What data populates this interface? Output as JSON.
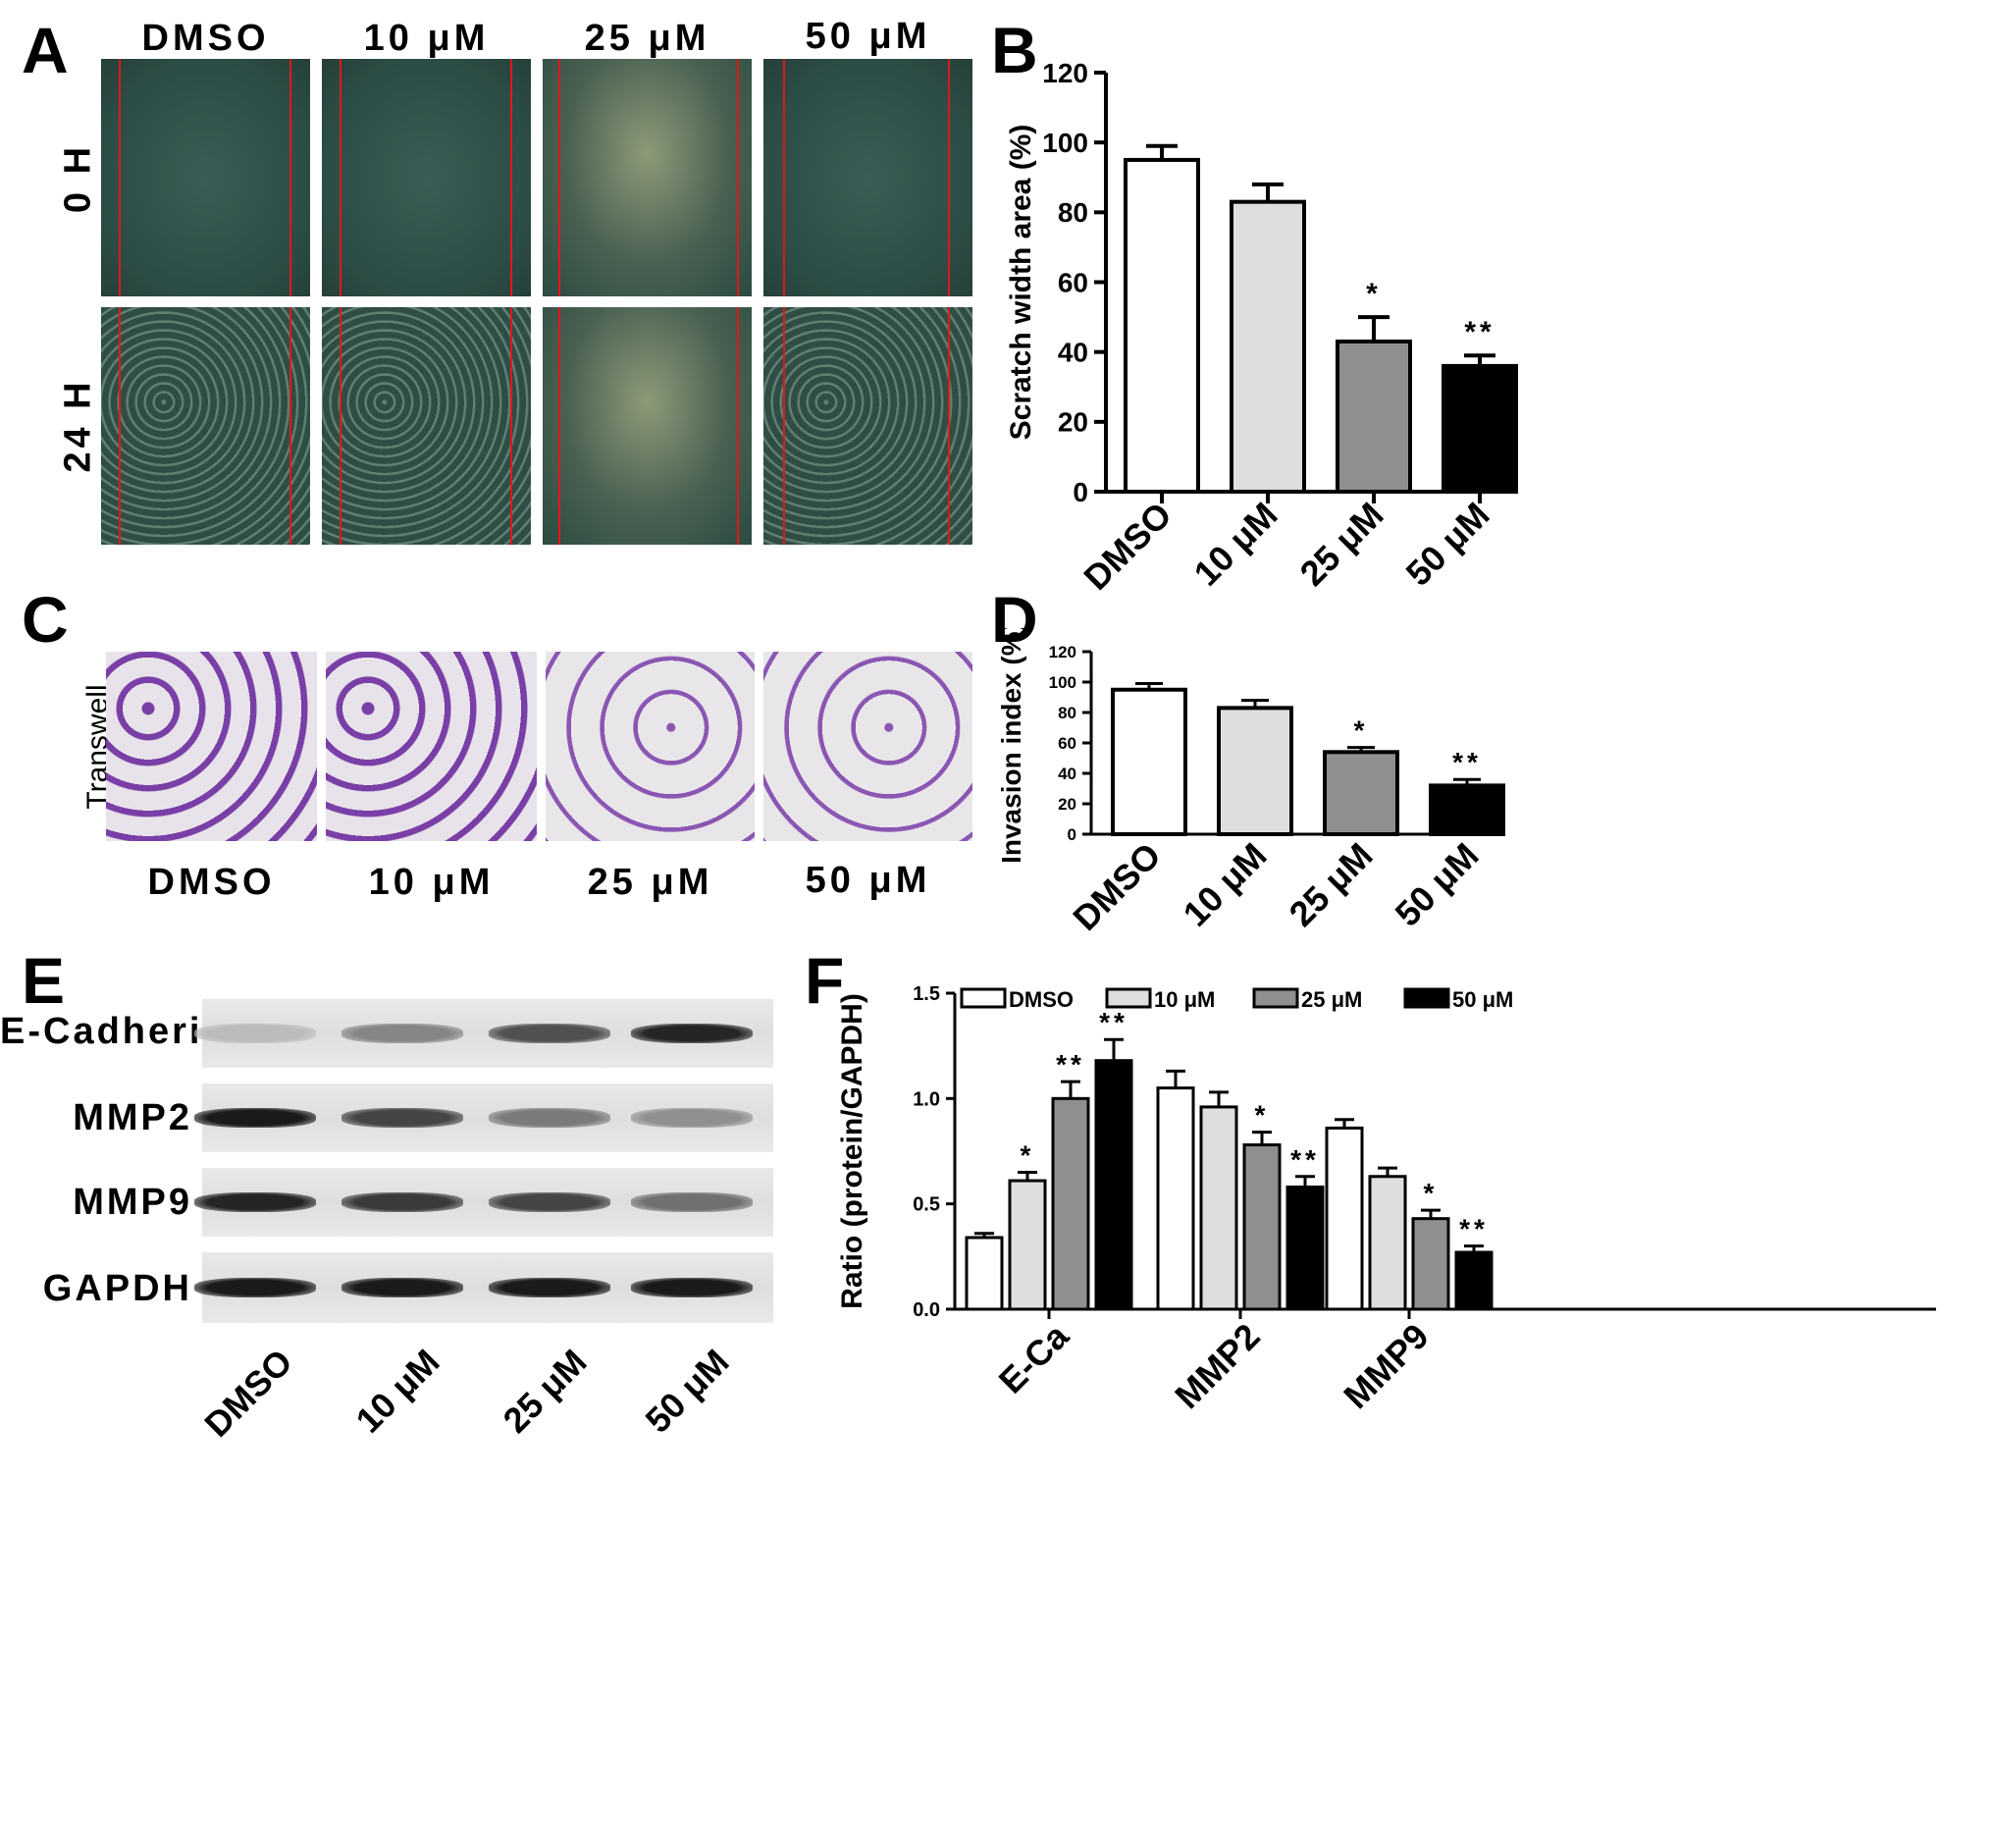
{
  "panels": {
    "A": {
      "letter": "A",
      "columns": [
        "DMSO",
        "10 μM",
        "25 μM",
        "50 μM"
      ],
      "rows": [
        "0 H",
        "24 H"
      ]
    },
    "C": {
      "letter": "C",
      "row_label": "Transwell",
      "columns": [
        "DMSO",
        "10 μM",
        "25 μM",
        "50 μM"
      ]
    },
    "E": {
      "letter": "E",
      "proteins": [
        "E-Cadherin",
        "MMP2",
        "MMP9",
        "GAPDH"
      ],
      "lanes": [
        "DMSO",
        "10 μM",
        "25 μM",
        "50 μM"
      ],
      "band_intensity": [
        [
          0.2,
          0.45,
          0.7,
          0.9
        ],
        [
          0.95,
          0.75,
          0.5,
          0.4
        ],
        [
          0.9,
          0.8,
          0.75,
          0.55
        ],
        [
          0.95,
          0.95,
          0.95,
          0.95
        ]
      ]
    }
  },
  "chart_data": [
    {
      "panel": "B",
      "type": "bar",
      "categories": [
        "DMSO",
        "10 μM",
        "25 μM",
        "50 μM"
      ],
      "values": [
        95,
        83,
        43,
        36
      ],
      "errors": [
        4,
        5,
        7,
        3
      ],
      "significance": [
        "",
        "",
        "*",
        "**"
      ],
      "ylabel": "Scratch width area (%)",
      "ylim": [
        0,
        120
      ],
      "yticks": [
        "0",
        "20",
        "40",
        "60",
        "80",
        "100",
        "120"
      ],
      "colors": [
        "#ffffff",
        "#dedede",
        "#8f8f8f",
        "#000000"
      ]
    },
    {
      "panel": "D",
      "type": "bar",
      "categories": [
        "DMSO",
        "10 μM",
        "25 μM",
        "50 μM"
      ],
      "values": [
        95,
        83,
        54,
        32
      ],
      "errors": [
        4,
        5,
        3,
        4
      ],
      "significance": [
        "",
        "",
        "*",
        "**"
      ],
      "ylabel": "Invasion index (%)",
      "ylim": [
        0,
        120
      ],
      "yticks": [
        "0",
        "20",
        "40",
        "60",
        "80",
        "100",
        "120"
      ],
      "colors": [
        "#ffffff",
        "#dedede",
        "#8f8f8f",
        "#000000"
      ]
    },
    {
      "panel": "F",
      "type": "bar",
      "categories": [
        "E-Ca",
        "MMP2",
        "MMP9"
      ],
      "series": [
        {
          "name": "DMSO",
          "values": [
            0.34,
            1.05,
            0.86
          ],
          "errors": [
            0.02,
            0.08,
            0.04
          ],
          "significance": [
            "",
            "",
            ""
          ],
          "color": "#ffffff"
        },
        {
          "name": "10 μM",
          "values": [
            0.61,
            0.96,
            0.63
          ],
          "errors": [
            0.04,
            0.07,
            0.04
          ],
          "significance": [
            "*",
            "",
            ""
          ],
          "color": "#dedede"
        },
        {
          "name": "25 μM",
          "values": [
            1.0,
            0.78,
            0.43
          ],
          "errors": [
            0.08,
            0.06,
            0.04
          ],
          "significance": [
            "**",
            "*",
            "*"
          ],
          "color": "#8f8f8f"
        },
        {
          "name": "50 μM",
          "values": [
            1.18,
            0.58,
            0.27
          ],
          "errors": [
            0.1,
            0.05,
            0.03
          ],
          "significance": [
            "**",
            "**",
            "**"
          ],
          "color": "#000000"
        }
      ],
      "ylabel": "Ratio (protein/GAPDH)",
      "ylim": [
        0,
        1.5
      ],
      "yticks": [
        "0.0",
        "0.5",
        "1.0",
        "1.5"
      ],
      "legend": "top"
    }
  ]
}
